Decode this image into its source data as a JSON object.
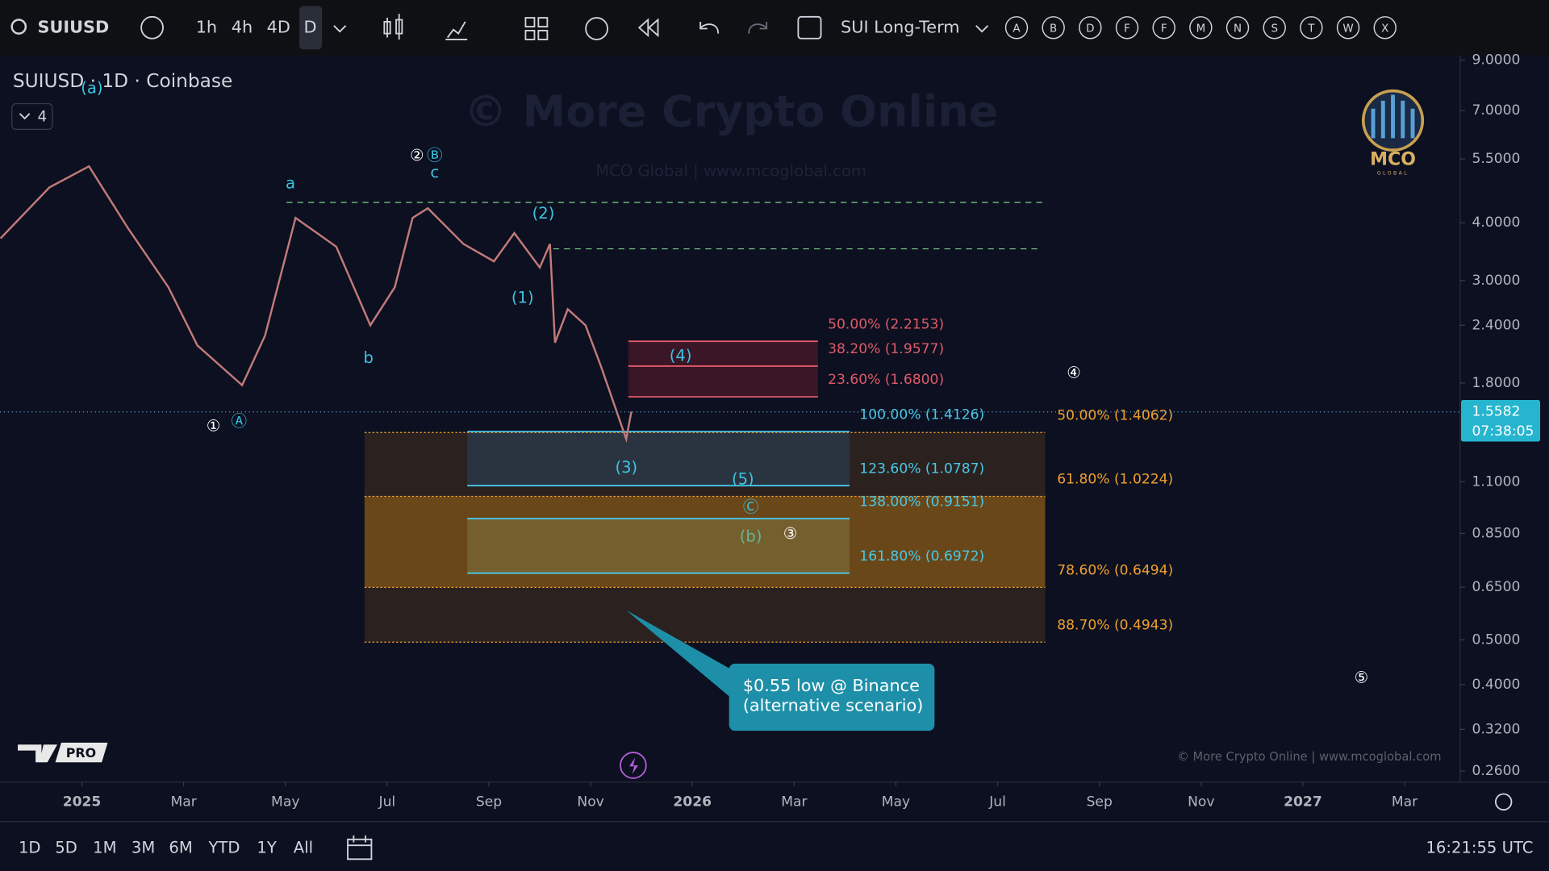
{
  "toolbar": {
    "symbol": "SUIUSD",
    "intervals": [
      "1h",
      "4h",
      "4D",
      "D"
    ],
    "layout_name": "SUI Long-Term",
    "letters": [
      "A",
      "B",
      "D",
      "F",
      "F",
      "M",
      "N",
      "S",
      "T",
      "W",
      "X"
    ]
  },
  "chart_data": {
    "type": "line",
    "title": "SUIUSD · 1D · Coinbase",
    "collapsed_count": 4,
    "watermark": "© More Crypto Online",
    "watermark_sub": "MCO Global   |   www.mcoglobal.com",
    "logo": "MCO",
    "logo_sub": "GLOBAL",
    "credit": "© More Crypto Online  |  www.mcoglobal.com",
    "badge": "PRO",
    "log_scale": true,
    "ylim": [
      0.246,
      9.04
    ],
    "yticks": [
      {
        "value": 9,
        "label": "9.0000"
      },
      {
        "value": 7,
        "label": "7.0000"
      },
      {
        "value": 5.5,
        "label": "5.5000"
      },
      {
        "value": 4,
        "label": "4.0000"
      },
      {
        "value": 3,
        "label": "3.0000"
      },
      {
        "value": 2.4,
        "label": "2.4000"
      },
      {
        "value": 1.8,
        "label": "1.8000"
      },
      {
        "value": 1.1,
        "label": "1.1000"
      },
      {
        "value": 0.85,
        "label": "0.8500"
      },
      {
        "value": 0.65,
        "label": "0.6500"
      },
      {
        "value": 0.5,
        "label": "0.5000"
      },
      {
        "value": 0.4,
        "label": "0.4000"
      },
      {
        "value": 0.32,
        "label": "0.3200"
      },
      {
        "value": 0.26,
        "label": "0.2600"
      }
    ],
    "xlim": [
      -1.61,
      27.09
    ],
    "xticks": [
      {
        "value": 0,
        "label": "2025"
      },
      {
        "value": 2,
        "label": "Mar"
      },
      {
        "value": 4,
        "label": "May"
      },
      {
        "value": 6,
        "label": "Jul"
      },
      {
        "value": 8,
        "label": "Sep"
      },
      {
        "value": 10,
        "label": "Nov"
      },
      {
        "value": 12,
        "label": "2026"
      },
      {
        "value": 14,
        "label": "Mar"
      },
      {
        "value": 16,
        "label": "May"
      },
      {
        "value": 18,
        "label": "Jul"
      },
      {
        "value": 20,
        "label": "Sep"
      },
      {
        "value": 22,
        "label": "Nov"
      },
      {
        "value": 24,
        "label": "2027"
      },
      {
        "value": 26,
        "label": "Mar"
      }
    ],
    "series": [
      {
        "color": "#c27a7a",
        "x": [
          -1.6,
          -0.64,
          0.14,
          0.9,
          1.7,
          2.27,
          3.15,
          3.6,
          4.2,
          5,
          5.67,
          6.15,
          6.5,
          6.8,
          7.5,
          8.1,
          8.5,
          9,
          9.2,
          9.3,
          9.55,
          9.9,
          10.2,
          10.7,
          10.8
        ],
        "values": [
          3.7,
          4.77,
          5.3,
          3.9,
          2.9,
          2.17,
          1.78,
          2.28,
          4.1,
          3.55,
          2.4,
          2.9,
          4.1,
          4.3,
          3.6,
          3.3,
          3.8,
          3.2,
          3.6,
          2.2,
          2.6,
          2.4,
          1.96,
          1.36,
          1.56
        ]
      }
    ],
    "last_price": {
      "value": 1.5582,
      "label": "1.5582"
    },
    "countdown": "07:38:05",
    "fib_red": [
      {
        "value": 2.2153,
        "label": "50.00% (2.2153)"
      },
      {
        "value": 1.9577,
        "label": "38.20% (1.9577)"
      },
      {
        "value": 1.68,
        "label": "23.60% (1.6800)"
      }
    ],
    "fib_cyan": [
      {
        "value": 1.4126,
        "label": "100.00% (1.4126)"
      },
      {
        "value": 1.0787,
        "label": "123.60% (1.0787)"
      },
      {
        "value": 0.9151,
        "label": "138.00% (0.9151)"
      },
      {
        "value": 0.6972,
        "label": "161.80% (0.6972)"
      }
    ],
    "fib_orange": [
      {
        "value": 1.4062,
        "label": "50.00% (1.4062)"
      },
      {
        "value": 1.0224,
        "label": "61.80% (1.0224)"
      },
      {
        "value": 0.6494,
        "label": "78.60% (0.6494)"
      },
      {
        "value": 0.4943,
        "label": "88.70% (0.4943)"
      }
    ],
    "wave_labels": [
      "(a)",
      "a",
      "②",
      "Ⓑ",
      "c",
      "(2)",
      "(1)",
      "b",
      "①",
      "Ⓐ",
      "(4)",
      "(3)",
      "(5)",
      "Ⓒ",
      "(b)",
      "③",
      "④",
      "⑤"
    ],
    "callout": [
      "$0.55 low @ Binance",
      "(alternative scenario)"
    ]
  },
  "bottom_bar": {
    "ranges": [
      "1D",
      "5D",
      "1M",
      "3M",
      "6M",
      "YTD",
      "1Y",
      "All"
    ],
    "clock": "16:21:55 UTC"
  }
}
